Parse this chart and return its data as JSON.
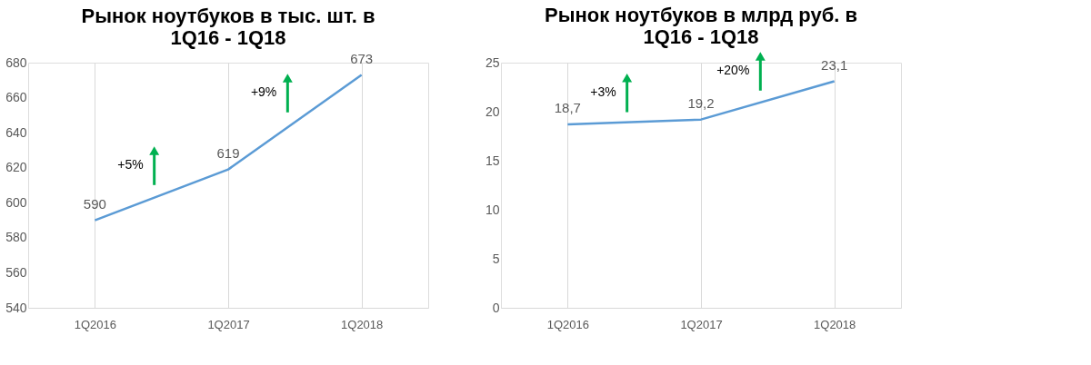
{
  "chart_data": [
    {
      "type": "line",
      "title": "Рынок ноутбуков в тыс. шт.  в\n1Q16 - 1Q18",
      "categories": [
        "1Q2016",
        "1Q2017",
        "1Q2018"
      ],
      "series": [
        {
          "color": "#5b9bd5",
          "values": [
            590,
            619,
            673
          ],
          "value_labels": [
            "590",
            "619",
            "673"
          ]
        }
      ],
      "ylim": [
        540,
        680
      ],
      "yticks": [
        540,
        560,
        580,
        600,
        620,
        640,
        660,
        680
      ],
      "grid": "x",
      "annotations": [
        "+5%",
        "+9%"
      ]
    },
    {
      "type": "line",
      "title": "Рынок ноутбуков в млрд руб. в\n1Q16 - 1Q18",
      "categories": [
        "1Q2016",
        "1Q2017",
        "1Q2018"
      ],
      "series": [
        {
          "color": "#5b9bd5",
          "values": [
            18.7,
            19.2,
            23.1
          ],
          "value_labels": [
            "18,7",
            "19,2",
            "23,1"
          ]
        }
      ],
      "ylim": [
        0,
        25
      ],
      "yticks": [
        0,
        5,
        10,
        15,
        20,
        25
      ],
      "grid": "x",
      "annotations": [
        "+3%",
        "+20%"
      ]
    }
  ]
}
